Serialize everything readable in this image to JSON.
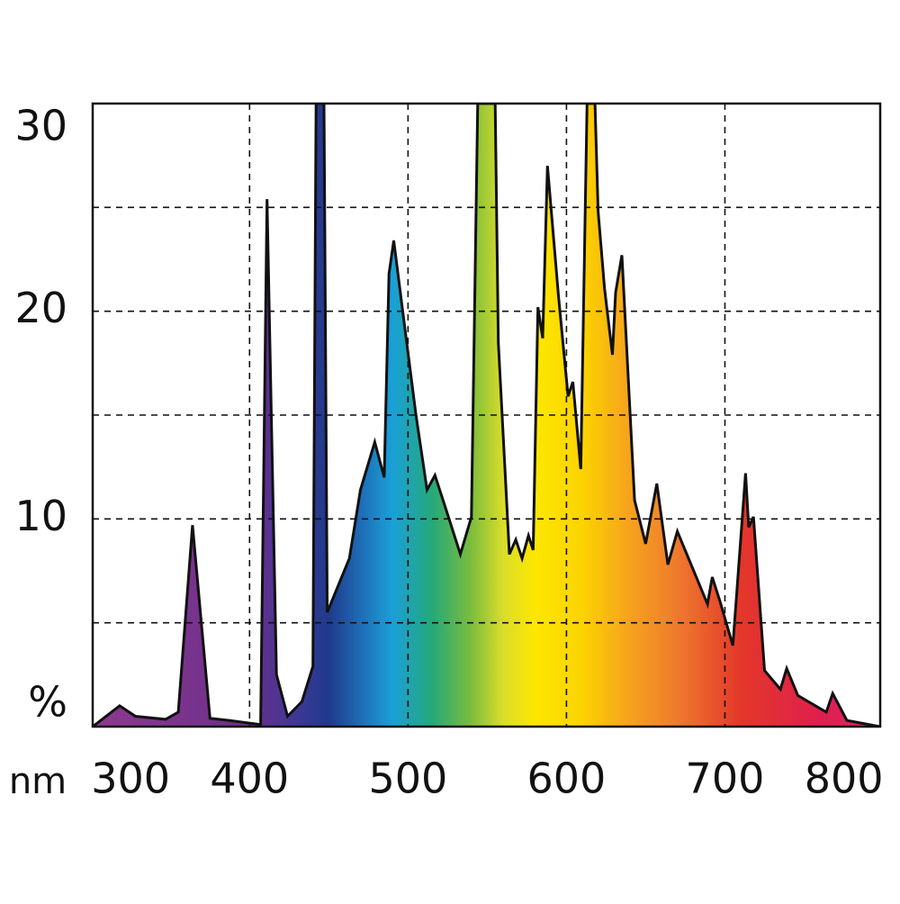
{
  "chart_data": {
    "type": "area",
    "x_label": "nm",
    "y_label": "%",
    "xlim": [
      301,
      798
    ],
    "ylim": [
      0,
      30
    ],
    "xticks": [
      300,
      400,
      500,
      600,
      700,
      800
    ],
    "yticks": [
      10,
      20,
      30
    ],
    "minor_yticks": [
      5,
      15,
      25
    ],
    "grid": true,
    "line_color": "#111111",
    "fill_gradient": [
      [
        301,
        "#8e3a8f"
      ],
      [
        400,
        "#6b2f8c"
      ],
      [
        430,
        "#3d3894"
      ],
      [
        450,
        "#1f3a8c"
      ],
      [
        470,
        "#1f6cb5"
      ],
      [
        490,
        "#1aa0d8"
      ],
      [
        515,
        "#25a87a"
      ],
      [
        540,
        "#7dbd3c"
      ],
      [
        560,
        "#d9dd2a"
      ],
      [
        580,
        "#fde700"
      ],
      [
        610,
        "#fcd300"
      ],
      [
        640,
        "#f6a21e"
      ],
      [
        670,
        "#ee7a2d"
      ],
      [
        710,
        "#e4372a"
      ],
      [
        760,
        "#df1f4d"
      ],
      [
        798,
        "#d8266a"
      ]
    ],
    "x": [
      301,
      318,
      328,
      347,
      355,
      364,
      375,
      387,
      407,
      411,
      417,
      424,
      433,
      440,
      442,
      447,
      449,
      456,
      463,
      470,
      479,
      485,
      488,
      491,
      498,
      505,
      512,
      517,
      523,
      533,
      540,
      544,
      555,
      557,
      564,
      568,
      572,
      576,
      579,
      582,
      585,
      588,
      595,
      601,
      604,
      609,
      613,
      618,
      620,
      624,
      629,
      631,
      635,
      643,
      650,
      657,
      664,
      670,
      689,
      692,
      697,
      705,
      713,
      715,
      718,
      725,
      735,
      739,
      746,
      764,
      768,
      777,
      798
    ],
    "values": [
      0,
      1.0,
      0.5,
      0.35,
      0.7,
      9.7,
      0.4,
      0.3,
      0.1,
      25.4,
      2.5,
      0.5,
      1.2,
      2.9,
      30,
      30,
      5.5,
      6.8,
      8.1,
      11.4,
      13.7,
      12.0,
      21.8,
      23.4,
      19.2,
      15.0,
      11.4,
      12.1,
      10.7,
      8.3,
      10.1,
      30,
      30,
      18.5,
      8.3,
      9.0,
      8.1,
      9.2,
      8.5,
      20.2,
      18.7,
      27.0,
      20.7,
      15.9,
      16.6,
      12.4,
      30,
      30,
      24.8,
      21.1,
      17.9,
      20.9,
      22.7,
      10.9,
      8.8,
      11.7,
      7.8,
      9.4,
      5.9,
      7.2,
      6.0,
      3.9,
      12.2,
      9.6,
      10.1,
      2.7,
      1.8,
      2.8,
      1.5,
      0.7,
      1.6,
      0.3,
      0
    ]
  }
}
